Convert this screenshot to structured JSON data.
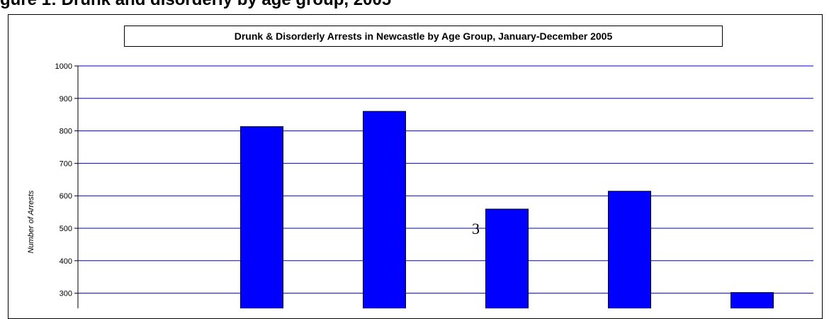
{
  "figure_heading": "gure 1: Drunk and disorderly by age group, 2005",
  "page_number": "3",
  "chart_data": {
    "type": "bar",
    "title": "Drunk & Disorderly Arrests in Newcastle by Age Group, January-December 2005",
    "ylabel": "Number of Arrests",
    "xlabel": "",
    "ylim": [
      0,
      1000
    ],
    "yticks": [
      300,
      400,
      500,
      600,
      700,
      800,
      900,
      1000
    ],
    "visible_ylim": [
      250,
      1000
    ],
    "grid": true,
    "categories": [
      "",
      "",
      "",
      "",
      "",
      ""
    ],
    "values": [
      null,
      813,
      860,
      559,
      614,
      302
    ],
    "bar_color": "#0000ff",
    "grid_color": "#0000cc"
  }
}
